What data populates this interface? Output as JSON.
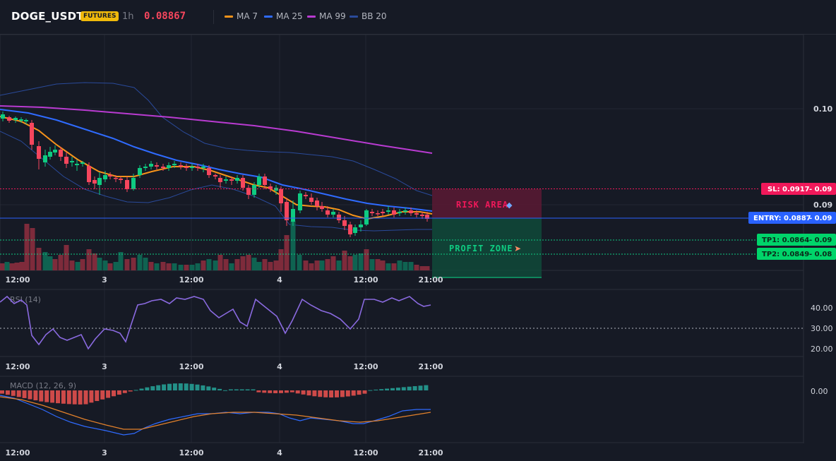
{
  "header": {
    "symbol": "DOGE_USDT",
    "badge": "FUTURES",
    "timeframe": "1h",
    "last_price": "0.08867",
    "legend": [
      {
        "label": "MA 7",
        "color": "#f7931a"
      },
      {
        "label": "MA 25",
        "color": "#2f6bff"
      },
      {
        "label": "MA 99",
        "color": "#b93bd1"
      },
      {
        "label": "BB 20",
        "color": "#2a4a9a"
      }
    ]
  },
  "colors": {
    "up": "#0ecb81",
    "down": "#f6465d",
    "background": "#161a25",
    "grid": "#232733",
    "rsi": "#8a6ae0",
    "macd": "#2f6bff",
    "signal": "#e3812b"
  },
  "price_axis": {
    "ticks": [
      "0.10",
      "0.09"
    ]
  },
  "time_axis": {
    "ticks": [
      "12:00",
      "3",
      "12:00",
      "4",
      "12:00",
      "21:00"
    ]
  },
  "levels": {
    "sl": {
      "label": "SL: 0.0917",
      "suffix": "- 0.09",
      "value": 0.0917,
      "color": "#f0185a"
    },
    "entry": {
      "label": "ENTRY: 0.0887",
      "suffix": "- 0.09",
      "value": 0.0887,
      "color": "#2962ff"
    },
    "tp1": {
      "label": "TP1: 0.0864",
      "suffix": "- 0.09",
      "value": 0.0864,
      "color": "#00d46a"
    },
    "tp2": {
      "label": "TP2: 0.0849",
      "suffix": "- 0.08",
      "value": 0.0849,
      "color": "#00d46a"
    }
  },
  "zones": {
    "risk": "RISK AREA",
    "risk_icon": "shield-icon",
    "profit": "PROFIT ZONE",
    "profit_icon": "rocket-icon"
  },
  "rsi": {
    "title": "RSI (14)",
    "ticks": [
      "40.00",
      "30.00",
      "20.00"
    ],
    "reference": 30
  },
  "macd": {
    "title": "MACD (12, 26, 9)",
    "ticks": [
      "0.00"
    ]
  }
}
